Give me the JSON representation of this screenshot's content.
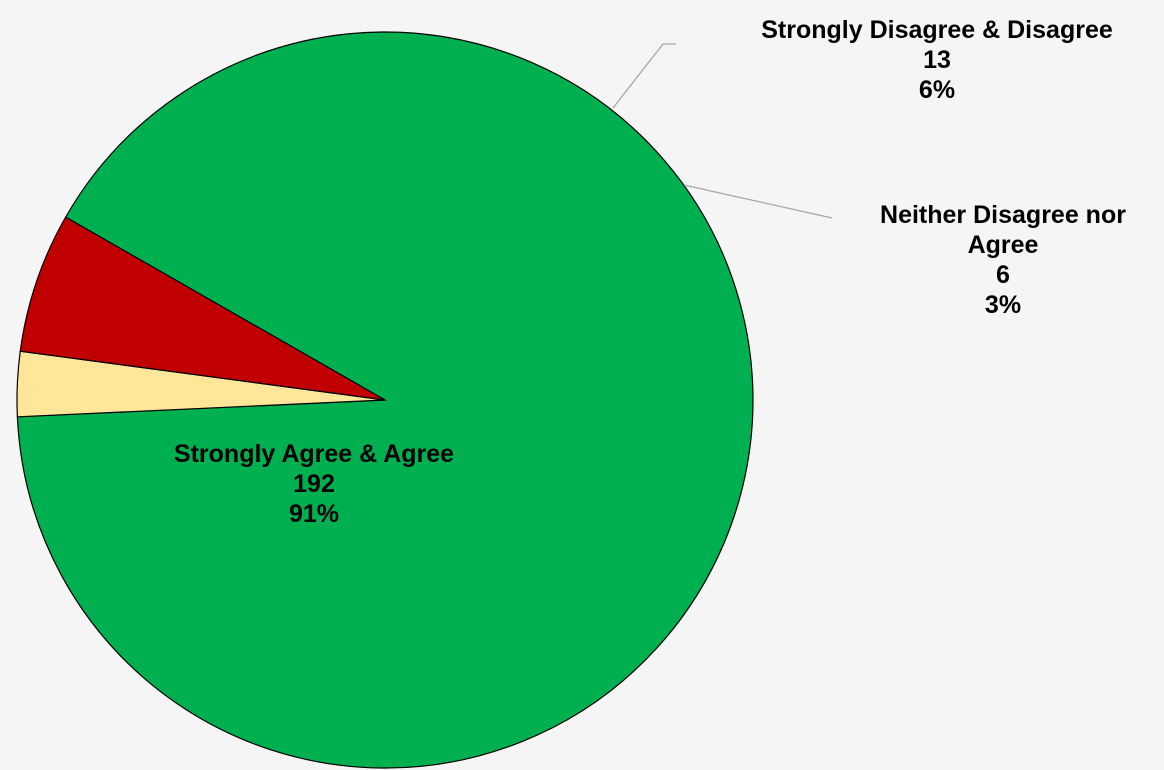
{
  "chart_data": {
    "type": "pie",
    "colors": {
      "background": "#f5f5f5",
      "outline": "#000000",
      "leader": "#a6a6a6"
    },
    "slices": [
      {
        "label_lines": [
          "Strongly Agree & Agree"
        ],
        "value": "192",
        "percent": "91%",
        "count": 192,
        "color": "#00b050"
      },
      {
        "label_lines": [
          "Neither Disagree nor",
          "Agree"
        ],
        "value": "6",
        "percent": "3%",
        "count": 6,
        "color": "#ffe699"
      },
      {
        "label_lines": [
          "Strongly Disagree & Disagree"
        ],
        "value": "13",
        "percent": "6%",
        "count": 13,
        "color": "#c00000"
      }
    ]
  }
}
